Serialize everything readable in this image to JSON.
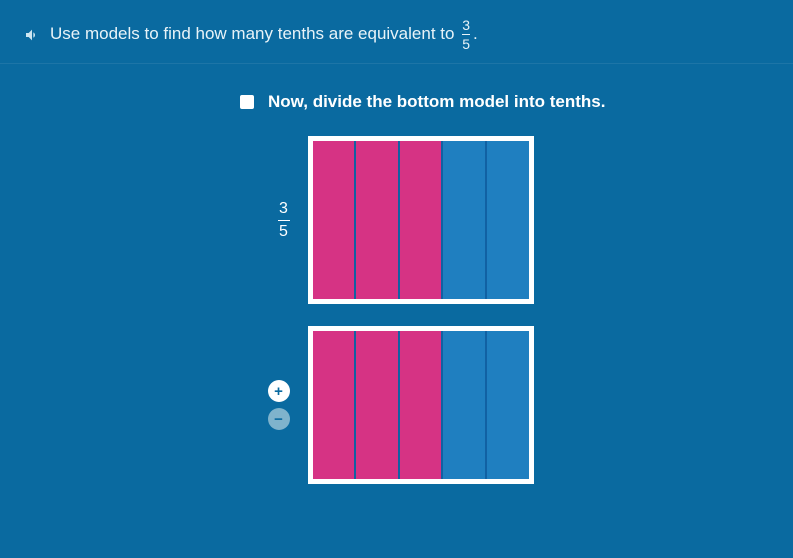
{
  "header": {
    "prompt_prefix": "Use models to find how many tenths are equivalent to",
    "fraction_num": "3",
    "fraction_den": "5",
    "prompt_suffix": "."
  },
  "instruction": {
    "text": "Now, divide the bottom model into tenths."
  },
  "top_model": {
    "label_num": "3",
    "label_den": "5",
    "columns": 5,
    "filled": 3,
    "filled_color": "#d63384",
    "empty_color": "#1f7fc0",
    "border_color": "#ffffff",
    "divider_color": "#1161a3"
  },
  "bottom_model": {
    "columns": 5,
    "filled": 3,
    "filled_color": "#d63384",
    "empty_color": "#1f7fc0",
    "border_color": "#ffffff",
    "divider_color": "#1161a3"
  },
  "controls": {
    "plus_label": "+",
    "minus_label": "−"
  },
  "colors": {
    "page_bg": "#0a6aa0",
    "text": "#ffffff",
    "header_text": "#e8f3f8"
  }
}
